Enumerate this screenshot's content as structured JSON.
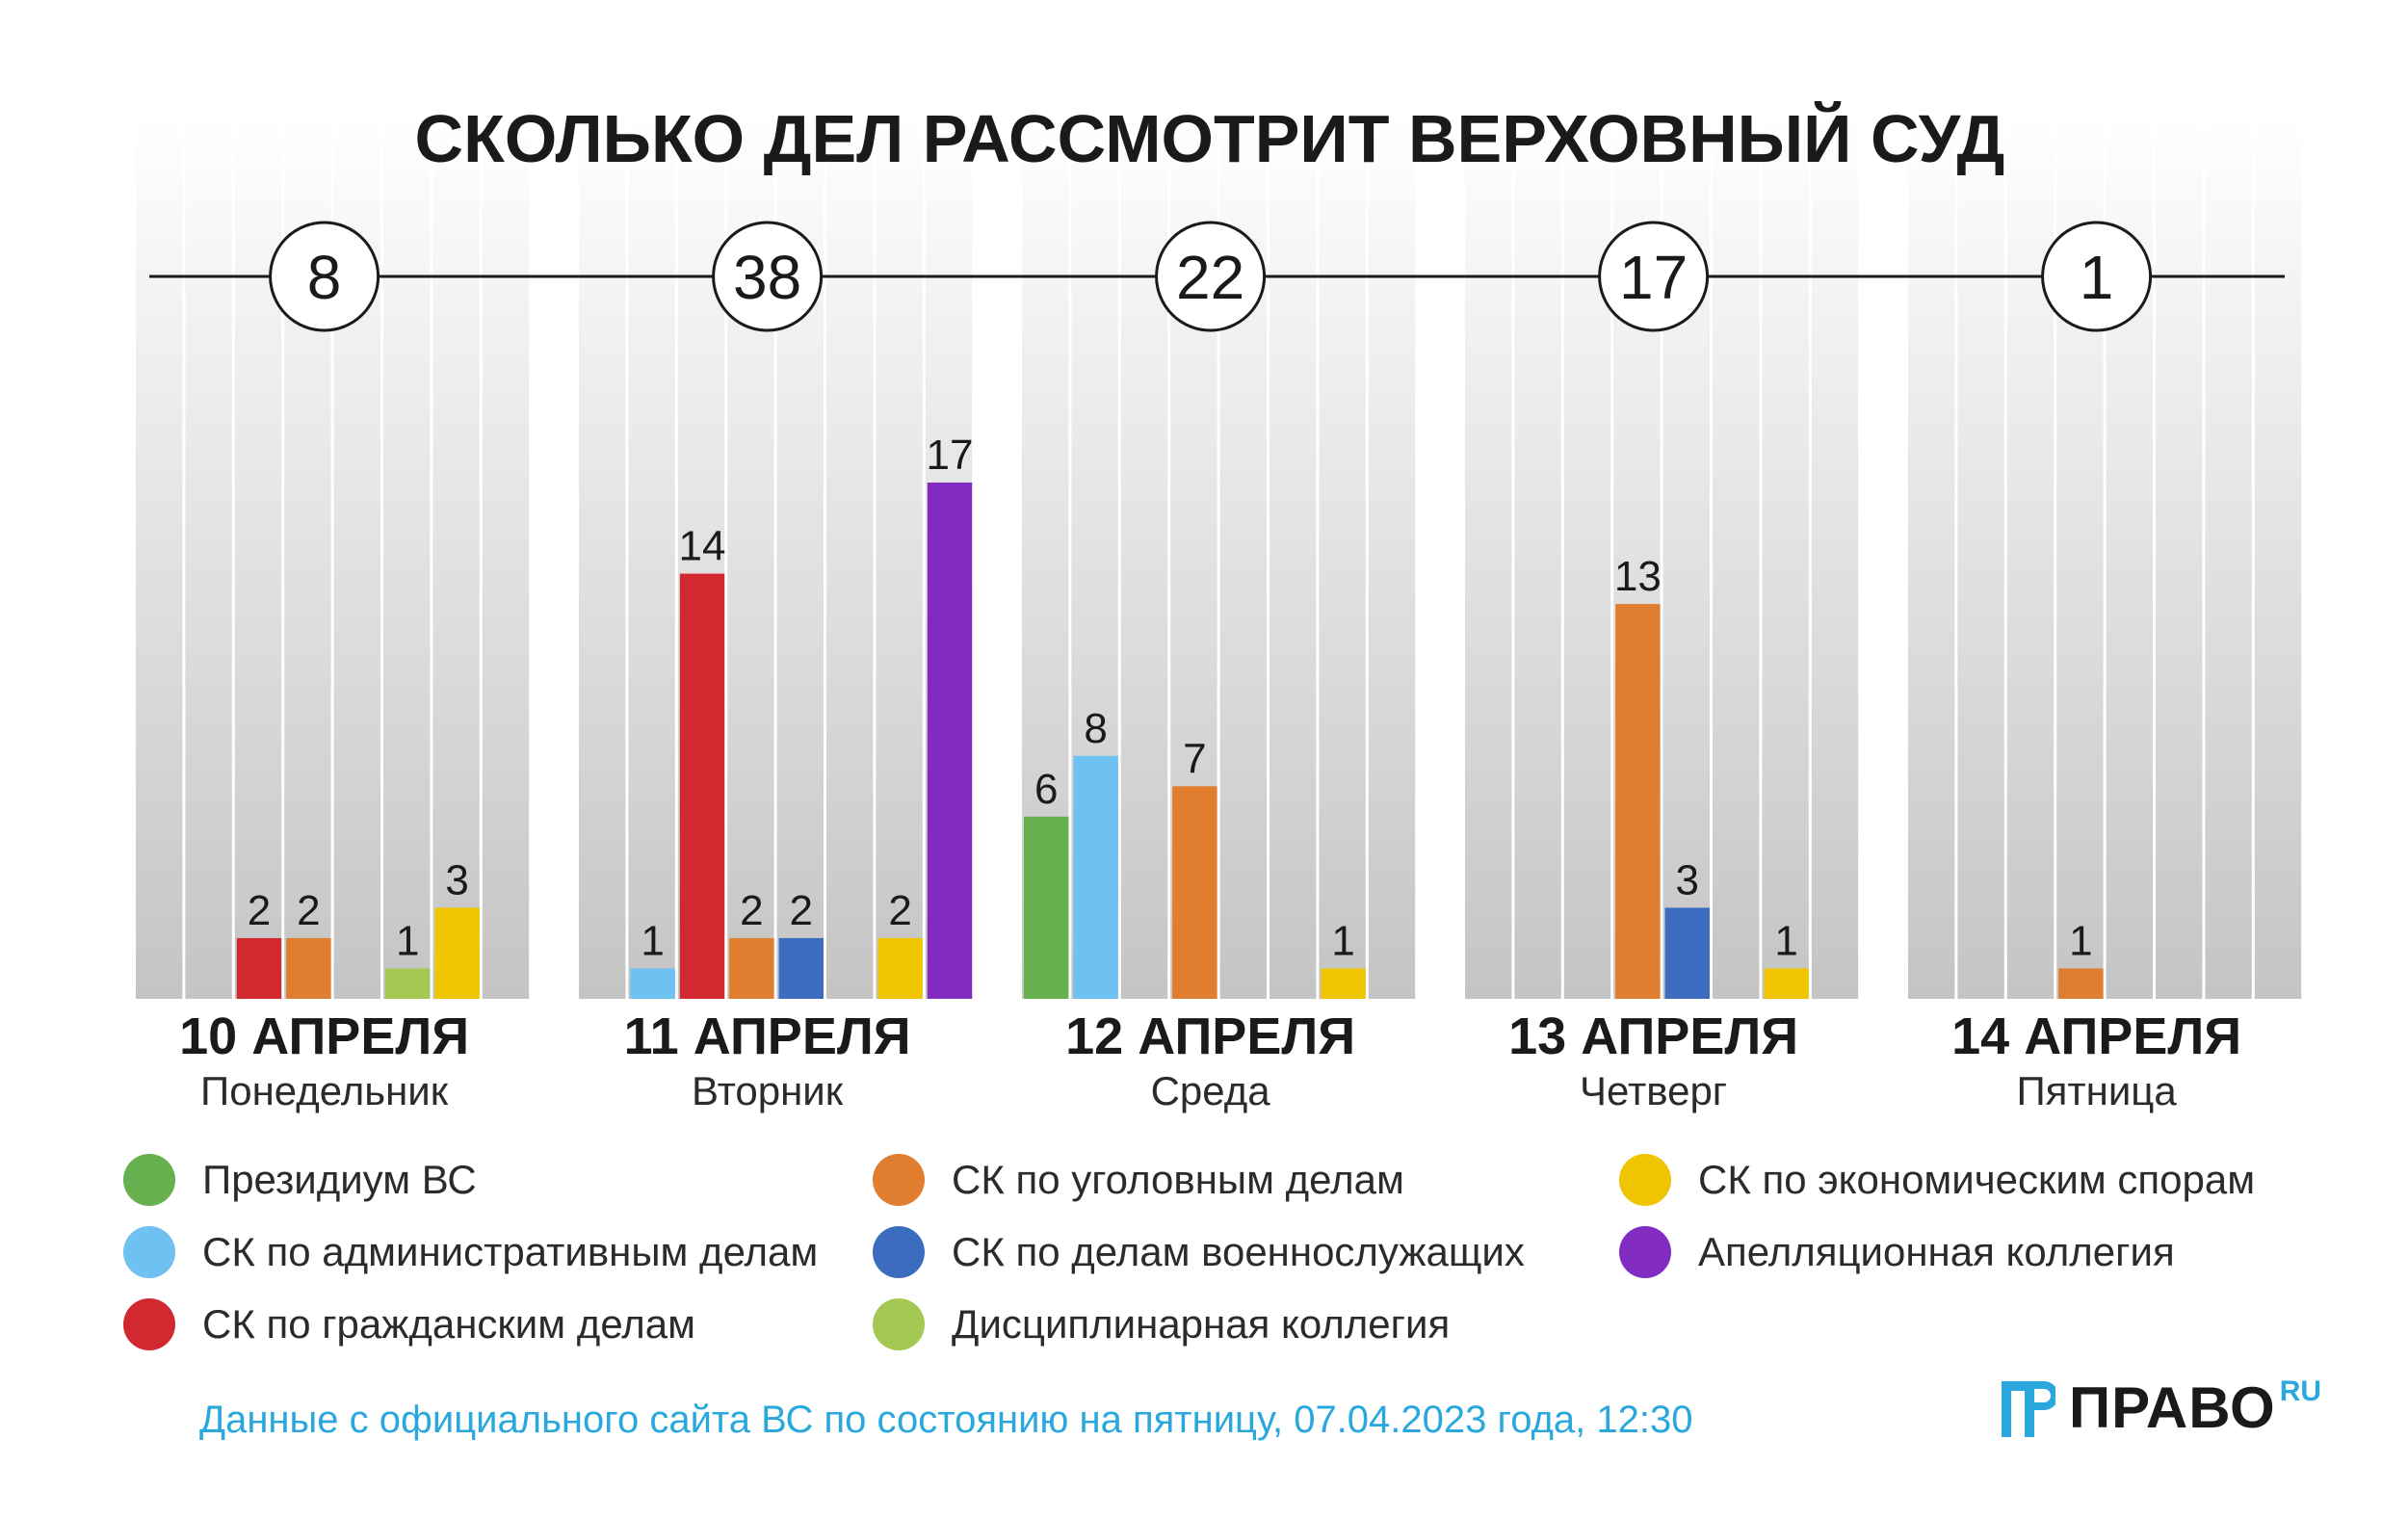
{
  "title": "СКОЛЬКО ДЕЛ РАССМОТРИТ ВЕРХОВНЫЙ СУД",
  "chart_data": {
    "type": "bar",
    "title": "СКОЛЬКО ДЕЛ РАССМОТРИТ ВЕРХОВНЫЙ СУД",
    "ylim": [
      0,
      17
    ],
    "legend_position": "bottom",
    "grid": false,
    "series": [
      {
        "name": "Президиум ВС",
        "color": "#66b04f"
      },
      {
        "name": "СК по административным делам",
        "color": "#6ec1f0"
      },
      {
        "name": "СК по гражданским делам",
        "color": "#d1292f"
      },
      {
        "name": "СК по уголовным делам",
        "color": "#e07d2e"
      },
      {
        "name": "СК по делам военнослужащих",
        "color": "#3b6cbf"
      },
      {
        "name": "Дисциплинарная коллегия",
        "color": "#a4c952"
      },
      {
        "name": "СК по экономическим спорам",
        "color": "#eec500"
      },
      {
        "name": "Апелляционная коллегия",
        "color": "#812bc0"
      }
    ],
    "days": [
      {
        "date": "10 АПРЕЛЯ",
        "weekday": "Понедельник",
        "total": "8",
        "values": [
          0,
          0,
          2,
          2,
          0,
          1,
          3,
          0
        ]
      },
      {
        "date": "11 АПРЕЛЯ",
        "weekday": "Вторник",
        "total": "38",
        "values": [
          0,
          1,
          14,
          2,
          2,
          0,
          2,
          17
        ]
      },
      {
        "date": "12 АПРЕЛЯ",
        "weekday": "Среда",
        "total": "22",
        "values": [
          6,
          8,
          0,
          7,
          0,
          0,
          1,
          0
        ]
      },
      {
        "date": "13 АПРЕЛЯ",
        "weekday": "Четверг",
        "total": "17",
        "values": [
          0,
          0,
          0,
          13,
          3,
          0,
          1,
          0
        ]
      },
      {
        "date": "14 АПРЕЛЯ",
        "weekday": "Пятница",
        "total": "1",
        "values": [
          0,
          0,
          0,
          1,
          0,
          0,
          0,
          0
        ]
      }
    ]
  },
  "legend": {
    "items": [
      {
        "label": "Президиум ВС",
        "color": "#66b04f"
      },
      {
        "label": "СК по административным делам",
        "color": "#6ec1f0"
      },
      {
        "label": "СК по гражданским делам",
        "color": "#d1292f"
      },
      {
        "label": "СК по уголовным делам",
        "color": "#e07d2e"
      },
      {
        "label": "СК по делам военнослужащих",
        "color": "#3b6cbf"
      },
      {
        "label": "Дисциплинарная коллегия",
        "color": "#a4c952"
      },
      {
        "label": "СК по экономическим спорам",
        "color": "#eec500"
      },
      {
        "label": "Апелляционная коллегия",
        "color": "#812bc0"
      }
    ]
  },
  "source_note": "Данные с официального сайта ВС по состоянию на пятницу, 07.04.2023 года, 12:30",
  "logo": {
    "word": "ПРАВО",
    "suffix": "RU",
    "accent": "#2aa8dd"
  }
}
